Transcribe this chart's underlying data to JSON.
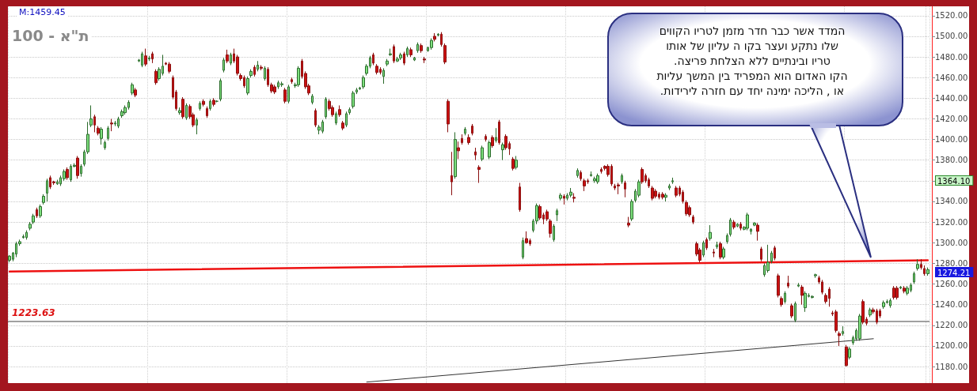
{
  "chart_data": {
    "type": "candlestick",
    "title": "ת\"א - 100",
    "categories": [
      null,
      null,
      null,
      null,
      null,
      null,
      null,
      null,
      null,
      null,
      null,
      null,
      null,
      null,
      null,
      null,
      null,
      null,
      null,
      null,
      null,
      null,
      null,
      null,
      null,
      null,
      null,
      null,
      null,
      null,
      null,
      null,
      null,
      null,
      null,
      null,
      null,
      null,
      null,
      null,
      null,
      null,
      null,
      null,
      null,
      null,
      null,
      null,
      null,
      null,
      null,
      null,
      null,
      null,
      null,
      null,
      null,
      null,
      null,
      null,
      null,
      null,
      null,
      null,
      null,
      null,
      null,
      null,
      null,
      null,
      null,
      null,
      null,
      null,
      null,
      null,
      null,
      null,
      null,
      null,
      null,
      null,
      null,
      null,
      null,
      null,
      null,
      null,
      null,
      null,
      null,
      null,
      null,
      null,
      null,
      null,
      null,
      null,
      null,
      null,
      null,
      null,
      null,
      null,
      null,
      null,
      null,
      null,
      null,
      null,
      null,
      null,
      null,
      null,
      null,
      null,
      null,
      null,
      null,
      null,
      null,
      null,
      null,
      null,
      null,
      null,
      null,
      null,
      null,
      null,
      null,
      null,
      null,
      null,
      null,
      null,
      null,
      null,
      null,
      null,
      null,
      null,
      null,
      null,
      null,
      null,
      null,
      null,
      null,
      null,
      null,
      null,
      null,
      null,
      null,
      null,
      null,
      null,
      null,
      null,
      null,
      null,
      null,
      null,
      null,
      null,
      null,
      null,
      null,
      null,
      null,
      null,
      null,
      null,
      null,
      null,
      null,
      null,
      null,
      null,
      null,
      null,
      null,
      null,
      null,
      null,
      null,
      null,
      null,
      null,
      null,
      null,
      null,
      null,
      null,
      null,
      null,
      null,
      null,
      null,
      null,
      null,
      null,
      null,
      null,
      null,
      null,
      null,
      null,
      null,
      null,
      null,
      null,
      null,
      null,
      null,
      null,
      null,
      null,
      null,
      null,
      null,
      null,
      null,
      null,
      null,
      null,
      null,
      null,
      null,
      null,
      null,
      null,
      null,
      null,
      null,
      null,
      null,
      null,
      null,
      null,
      null,
      null,
      null,
      null,
      null,
      null,
      null,
      null,
      null,
      null,
      null,
      null,
      null,
      null,
      null,
      null,
      null,
      null,
      null,
      null,
      null,
      null,
      null,
      null,
      null,
      null,
      null,
      null,
      null,
      null
    ],
    "ohlc": [
      [
        1283,
        1288,
        1281,
        1287
      ],
      [
        1284,
        1291,
        1282,
        1290
      ],
      [
        1289,
        1301,
        1286,
        1299
      ],
      [
        1299,
        1303,
        1297,
        1301
      ],
      [
        1305,
        1308,
        1304,
        1306
      ],
      [
        1305,
        1312,
        1303,
        1310
      ],
      [
        1314,
        1320,
        1312,
        1318
      ],
      [
        1320,
        1328,
        1318,
        1326
      ],
      [
        1332,
        1334,
        1324,
        1326
      ],
      [
        1326,
        1337,
        1324,
        1335
      ],
      [
        1339,
        1347,
        1337,
        1345
      ],
      [
        1348,
        1362,
        1340,
        1360
      ],
      [
        1363,
        1365,
        1352,
        1354
      ],
      [
        1359,
        1360,
        1356,
        1358
      ],
      [
        1357,
        1361,
        1356,
        1359
      ],
      [
        1357,
        1365,
        1355,
        1363
      ],
      [
        1362,
        1371,
        1360,
        1369
      ],
      [
        1371,
        1373,
        1361,
        1363
      ],
      [
        1361,
        1376,
        1359,
        1374
      ],
      [
        1374,
        1377,
        1373,
        1375
      ],
      [
        1382,
        1384,
        1362,
        1365
      ],
      [
        1367,
        1376,
        1364,
        1374
      ],
      [
        1376,
        1390,
        1374,
        1388
      ],
      [
        1388,
        1417,
        1386,
        1405
      ],
      [
        1414,
        1433,
        1412,
        1420
      ],
      [
        1422,
        1424,
        1407,
        1414
      ],
      [
        1411,
        1413,
        1404,
        1406
      ],
      [
        1401,
        1412,
        1395,
        1410
      ],
      [
        1392,
        1399,
        1390,
        1397
      ],
      [
        1401,
        1413,
        1399,
        1411
      ],
      [
        1416,
        1420,
        1408,
        1415
      ],
      [
        1415,
        1418,
        1413,
        1416
      ],
      [
        1413,
        1422,
        1411,
        1420
      ],
      [
        1423,
        1429,
        1421,
        1427
      ],
      [
        1426,
        1433,
        1424,
        1431
      ],
      [
        1431,
        1438,
        1429,
        1436
      ],
      [
        1445,
        1455,
        1443,
        1453
      ],
      [
        1448,
        1450,
        1441,
        1443
      ],
      [
        1476,
        1478,
        1475,
        1477
      ],
      [
        1472,
        1485,
        1470,
        1483
      ],
      [
        1481,
        1488,
        1471,
        1473
      ],
      [
        1478,
        1481,
        1476,
        1479
      ],
      [
        1483,
        1485,
        1474,
        1478
      ],
      [
        1466,
        1468,
        1453,
        1455
      ],
      [
        1459,
        1470,
        1457,
        1468
      ],
      [
        1464,
        1482,
        1462,
        1471
      ],
      [
        1474,
        1475,
        1472,
        1473
      ],
      [
        1473,
        1475,
        1464,
        1466
      ],
      [
        1460,
        1462,
        1439,
        1441
      ],
      [
        1446,
        1448,
        1428,
        1430
      ],
      [
        1426,
        1431,
        1424,
        1428
      ],
      [
        1439,
        1441,
        1420,
        1422
      ],
      [
        1421,
        1435,
        1419,
        1433
      ],
      [
        1432,
        1434,
        1420,
        1422
      ],
      [
        1424,
        1426,
        1412,
        1414
      ],
      [
        1414,
        1421,
        1405,
        1419
      ],
      [
        1430,
        1437,
        1428,
        1435
      ],
      [
        1437,
        1439,
        1432,
        1434
      ],
      [
        1430,
        1432,
        1421,
        1423
      ],
      [
        1430,
        1439,
        1428,
        1437
      ],
      [
        1438,
        1440,
        1432,
        1434
      ],
      [
        1437,
        1438,
        1436,
        1437
      ],
      [
        1439,
        1459,
        1437,
        1457
      ],
      [
        1467,
        1479,
        1465,
        1477
      ],
      [
        1482,
        1487,
        1474,
        1476
      ],
      [
        1474,
        1484,
        1472,
        1482
      ],
      [
        1483,
        1488,
        1474,
        1476
      ],
      [
        1480,
        1482,
        1462,
        1464
      ],
      [
        1462,
        1464,
        1457,
        1459
      ],
      [
        1460,
        1462,
        1450,
        1452
      ],
      [
        1445,
        1461,
        1443,
        1459
      ],
      [
        1462,
        1468,
        1460,
        1466
      ],
      [
        1470,
        1472,
        1461,
        1463
      ],
      [
        1468,
        1476,
        1466,
        1472
      ],
      [
        1470,
        1472,
        1467,
        1469
      ],
      [
        1459,
        1471,
        1457,
        1469
      ],
      [
        1468,
        1470,
        1451,
        1453
      ],
      [
        1453,
        1455,
        1445,
        1447
      ],
      [
        1451,
        1453,
        1444,
        1446
      ],
      [
        1451,
        1457,
        1449,
        1455
      ],
      [
        1453,
        1456,
        1451,
        1454
      ],
      [
        1448,
        1450,
        1435,
        1437
      ],
      [
        1437,
        1453,
        1435,
        1451
      ],
      [
        1458,
        1460,
        1454,
        1456
      ],
      [
        1452,
        1455,
        1450,
        1453
      ],
      [
        1453,
        1471,
        1451,
        1469
      ],
      [
        1476,
        1478,
        1459,
        1461
      ],
      [
        1464,
        1466,
        1449,
        1451
      ],
      [
        1452,
        1454,
        1443,
        1445
      ],
      [
        1436,
        1444,
        1434,
        1442
      ],
      [
        1428,
        1430,
        1412,
        1414
      ],
      [
        1409,
        1414,
        1405,
        1412
      ],
      [
        1408,
        1419,
        1406,
        1417
      ],
      [
        1422,
        1441,
        1420,
        1439
      ],
      [
        1437,
        1439,
        1428,
        1430
      ],
      [
        1431,
        1433,
        1422,
        1424
      ],
      [
        1416,
        1427,
        1414,
        1425
      ],
      [
        1429,
        1433,
        1422,
        1424
      ],
      [
        1416,
        1418,
        1409,
        1411
      ],
      [
        1414,
        1427,
        1412,
        1425
      ],
      [
        1426,
        1431,
        1424,
        1429
      ],
      [
        1432,
        1447,
        1430,
        1445
      ],
      [
        1446,
        1450,
        1444,
        1448
      ],
      [
        1449,
        1451,
        1448,
        1450
      ],
      [
        1451,
        1462,
        1449,
        1460
      ],
      [
        1464,
        1473,
        1462,
        1471
      ],
      [
        1471,
        1481,
        1469,
        1479
      ],
      [
        1482,
        1484,
        1472,
        1474
      ],
      [
        1471,
        1473,
        1463,
        1465
      ],
      [
        1468,
        1470,
        1463,
        1465
      ],
      [
        1461,
        1469,
        1454,
        1467
      ],
      [
        1473,
        1478,
        1471,
        1476
      ],
      [
        1482,
        1488,
        1481,
        1483
      ],
      [
        1490,
        1492,
        1474,
        1476
      ],
      [
        1476,
        1480,
        1475,
        1478
      ],
      [
        1479,
        1484,
        1477,
        1482
      ],
      [
        1483,
        1485,
        1472,
        1474
      ],
      [
        1482,
        1490,
        1480,
        1488
      ],
      [
        1487,
        1489,
        1480,
        1482
      ],
      [
        1477,
        1480,
        1476,
        1479
      ],
      [
        1486,
        1494,
        1484,
        1492
      ],
      [
        1491,
        1493,
        1484,
        1486
      ],
      [
        1478,
        1480,
        1474,
        1477
      ],
      [
        1486,
        1490,
        1485,
        1489
      ],
      [
        1489,
        1498,
        1487,
        1496
      ],
      [
        1500,
        1503,
        1495,
        1497
      ],
      [
        1501,
        1503,
        1500,
        1502
      ],
      [
        1502,
        1504,
        1490,
        1492
      ],
      [
        1491,
        1493,
        1473,
        1475
      ],
      [
        1437,
        1439,
        1407,
        1415
      ],
      [
        1365,
        1388,
        1346,
        1359
      ],
      [
        1364,
        1407,
        1362,
        1400
      ],
      [
        1392,
        1398,
        1381,
        1389
      ],
      [
        1401,
        1405,
        1395,
        1397
      ],
      [
        1406,
        1412,
        1404,
        1410
      ],
      [
        1402,
        1405,
        1395,
        1397
      ],
      [
        1413,
        1415,
        1404,
        1406
      ],
      [
        1388,
        1392,
        1380,
        1385
      ],
      [
        1373,
        1375,
        1358,
        1371
      ],
      [
        1381,
        1394,
        1379,
        1392
      ],
      [
        1403,
        1405,
        1398,
        1400
      ],
      [
        1383,
        1399,
        1381,
        1397
      ],
      [
        1402,
        1404,
        1392,
        1394
      ],
      [
        1399,
        1411,
        1397,
        1402
      ],
      [
        1417,
        1419,
        1395,
        1397
      ],
      [
        1390,
        1397,
        1380,
        1395
      ],
      [
        1403,
        1405,
        1390,
        1392
      ],
      [
        1396,
        1398,
        1385,
        1391
      ],
      [
        1381,
        1383,
        1370,
        1372
      ],
      [
        1373,
        1384,
        1371,
        1380
      ],
      [
        1354,
        1358,
        1330,
        1332
      ],
      [
        1286,
        1305,
        1284,
        1302
      ],
      [
        1304,
        1311,
        1299,
        1300
      ],
      [
        1302,
        1304,
        1297,
        1299
      ],
      [
        1312,
        1323,
        1310,
        1321
      ],
      [
        1321,
        1338,
        1318,
        1336
      ],
      [
        1335,
        1337,
        1322,
        1324
      ],
      [
        1327,
        1329,
        1318,
        1323
      ],
      [
        1330,
        1332,
        1321,
        1323
      ],
      [
        1321,
        1323,
        1305,
        1309
      ],
      [
        1303,
        1318,
        1301,
        1316
      ],
      [
        1327,
        1333,
        1321,
        1331
      ],
      [
        1343,
        1348,
        1341,
        1346
      ],
      [
        1345,
        1347,
        1337,
        1343
      ],
      [
        1343,
        1348,
        1341,
        1346
      ],
      [
        1346,
        1353,
        1344,
        1349
      ],
      [
        1344,
        1348,
        1339,
        1343
      ],
      [
        1365,
        1372,
        1363,
        1370
      ],
      [
        1368,
        1370,
        1360,
        1362
      ],
      [
        1360,
        1362,
        1350,
        1355
      ],
      [
        1360,
        1362,
        1357,
        1359
      ],
      [
        1365,
        1369,
        1364,
        1366
      ],
      [
        1360,
        1364,
        1358,
        1362
      ],
      [
        1359,
        1367,
        1357,
        1365
      ],
      [
        1371,
        1373,
        1367,
        1369
      ],
      [
        1374,
        1375,
        1370,
        1372
      ],
      [
        1374,
        1376,
        1364,
        1366
      ],
      [
        1374,
        1376,
        1355,
        1357
      ],
      [
        1355,
        1357,
        1351,
        1353
      ],
      [
        1356,
        1358,
        1347,
        1355
      ],
      [
        1359,
        1367,
        1357,
        1365
      ],
      [
        1358,
        1360,
        1344,
        1352
      ],
      [
        1319,
        1325,
        1315,
        1317
      ],
      [
        1323,
        1342,
        1321,
        1340
      ],
      [
        1341,
        1352,
        1339,
        1350
      ],
      [
        1346,
        1361,
        1344,
        1359
      ],
      [
        1371,
        1373,
        1357,
        1359
      ],
      [
        1365,
        1367,
        1358,
        1360
      ],
      [
        1361,
        1363,
        1353,
        1355
      ],
      [
        1353,
        1355,
        1341,
        1343
      ],
      [
        1350,
        1352,
        1343,
        1345
      ],
      [
        1347,
        1349,
        1342,
        1344
      ],
      [
        1347,
        1349,
        1342,
        1344
      ],
      [
        1344,
        1348,
        1340,
        1346
      ],
      [
        1353,
        1357,
        1351,
        1355
      ],
      [
        1359,
        1363,
        1357,
        1360
      ],
      [
        1353,
        1355,
        1344,
        1346
      ],
      [
        1353,
        1355,
        1345,
        1347
      ],
      [
        1349,
        1351,
        1338,
        1340
      ],
      [
        1339,
        1341,
        1326,
        1328
      ],
      [
        1334,
        1336,
        1325,
        1327
      ],
      [
        1325,
        1327,
        1318,
        1320
      ],
      [
        1299,
        1301,
        1287,
        1289
      ],
      [
        1293,
        1295,
        1281,
        1283
      ],
      [
        1288,
        1302,
        1286,
        1300
      ],
      [
        1303,
        1305,
        1293,
        1295
      ],
      [
        1304,
        1317,
        1302,
        1310
      ],
      [
        1291,
        1294,
        1286,
        1290
      ],
      [
        1296,
        1301,
        1294,
        1298
      ],
      [
        1299,
        1301,
        1284,
        1286
      ],
      [
        1286,
        1296,
        1284,
        1294
      ],
      [
        1301,
        1309,
        1299,
        1307
      ],
      [
        1308,
        1324,
        1306,
        1322
      ],
      [
        1320,
        1322,
        1313,
        1315
      ],
      [
        1316,
        1319,
        1315,
        1318
      ],
      [
        1318,
        1320,
        1312,
        1314
      ],
      [
        1313,
        1316,
        1312,
        1315
      ],
      [
        1314,
        1329,
        1312,
        1327
      ],
      [
        1311,
        1314,
        1308,
        1313
      ],
      [
        1317,
        1320,
        1316,
        1319
      ],
      [
        1317,
        1319,
        1302,
        1311
      ],
      [
        1294,
        1296,
        1282,
        1284
      ],
      [
        1269,
        1280,
        1267,
        1278
      ],
      [
        1273,
        1298,
        1271,
        1281
      ],
      [
        1282,
        1292,
        1280,
        1290
      ],
      [
        1295,
        1297,
        1283,
        1285
      ],
      [
        1268,
        1270,
        1247,
        1249
      ],
      [
        1246,
        1248,
        1238,
        1240
      ],
      [
        1243,
        1253,
        1241,
        1251
      ],
      [
        1261,
        1268,
        1256,
        1258
      ],
      [
        1239,
        1241,
        1227,
        1229
      ],
      [
        1225,
        1243,
        1223,
        1241
      ],
      [
        1258,
        1261,
        1257,
        1259
      ],
      [
        1257,
        1259,
        1240,
        1249
      ],
      [
        1237,
        1253,
        1233,
        1251
      ],
      [
        1248,
        1251,
        1247,
        1249
      ],
      [
        1247,
        1249,
        1246,
        1248
      ],
      [
        1268,
        1270,
        1266,
        1269
      ],
      [
        1266,
        1268,
        1260,
        1262
      ],
      [
        1262,
        1264,
        1250,
        1252
      ],
      [
        1249,
        1251,
        1241,
        1243
      ],
      [
        1255,
        1257,
        1238,
        1246
      ],
      [
        1232,
        1234,
        1229,
        1231
      ],
      [
        1233,
        1235,
        1213,
        1215
      ],
      [
        1212,
        1214,
        1200,
        1210
      ],
      [
        1212,
        1219,
        1210,
        1214
      ],
      [
        1199,
        1201,
        1180,
        1181
      ],
      [
        1189,
        1199,
        1187,
        1197
      ],
      [
        1203,
        1210,
        1201,
        1208
      ],
      [
        1207,
        1217,
        1205,
        1215
      ],
      [
        1207,
        1231,
        1205,
        1229
      ],
      [
        1243,
        1245,
        1221,
        1223
      ],
      [
        1226,
        1228,
        1220,
        1222
      ],
      [
        1230,
        1237,
        1228,
        1235
      ],
      [
        1235,
        1237,
        1231,
        1233
      ],
      [
        1234,
        1236,
        1221,
        1223
      ],
      [
        1234,
        1236,
        1227,
        1229
      ],
      [
        1238,
        1244,
        1236,
        1242
      ],
      [
        1242,
        1245,
        1241,
        1243
      ],
      [
        1239,
        1246,
        1237,
        1244
      ],
      [
        1256,
        1258,
        1245,
        1247
      ],
      [
        1256,
        1258,
        1245,
        1247
      ],
      [
        1256,
        1258,
        1255,
        1257
      ],
      [
        1256,
        1258,
        1251,
        1253
      ],
      [
        1251,
        1258,
        1249,
        1256
      ],
      [
        1254,
        1261,
        1252,
        1259
      ],
      [
        1262,
        1272,
        1260,
        1270
      ],
      [
        1275,
        1284,
        1273,
        1279
      ],
      [
        1279,
        1284,
        1274,
        1276
      ],
      [
        1275,
        1278,
        1268,
        1270
      ],
      [
        1270,
        1276,
        1268,
        1274
      ]
    ],
    "series": [
      {
        "type": "line",
        "color": "#ee1111",
        "values": [
          1272,
          null,
          null,
          null,
          null,
          null,
          null,
          null,
          null,
          null,
          null,
          null,
          null,
          null,
          null,
          null,
          null,
          null,
          null,
          null,
          null,
          null,
          null,
          null,
          null,
          null,
          null,
          null,
          null,
          null,
          null,
          null,
          null,
          null,
          null,
          null,
          null,
          null,
          null,
          null,
          null,
          null,
          null,
          null,
          null,
          null,
          null,
          null,
          null,
          null,
          null,
          null,
          null,
          null,
          null,
          null,
          null,
          null,
          null,
          null,
          null,
          null,
          null,
          null,
          null,
          null,
          null,
          null,
          null,
          null,
          null,
          null,
          null,
          null,
          null,
          null,
          null,
          null,
          null,
          null,
          null,
          null,
          null,
          null,
          null,
          null,
          null,
          null,
          null,
          null,
          null,
          null,
          null,
          null,
          null,
          null,
          null,
          null,
          null,
          null,
          null,
          null,
          null,
          null,
          null,
          null,
          null,
          null,
          null,
          null,
          null,
          null,
          null,
          null,
          null,
          null,
          null,
          null,
          null,
          null,
          null,
          null,
          null,
          null,
          null,
          null,
          null,
          null,
          null,
          null,
          null,
          null,
          null,
          null,
          null,
          null,
          null,
          null,
          null,
          null,
          null,
          null,
          null,
          null,
          null,
          null,
          null,
          null,
          null,
          null,
          null,
          null,
          null,
          null,
          null,
          null,
          null,
          null,
          null,
          null,
          null,
          null,
          null,
          null,
          null,
          null,
          null,
          null,
          null,
          null,
          null,
          null,
          null,
          null,
          null,
          null,
          null,
          null,
          null,
          null,
          null,
          null,
          null,
          null,
          null,
          null,
          null,
          null,
          null,
          null,
          null,
          null,
          null,
          null,
          null,
          null,
          null,
          null,
          null,
          null,
          null,
          null,
          null,
          null,
          null,
          null,
          null,
          null,
          null,
          null,
          null,
          null,
          null,
          null,
          null,
          null,
          null,
          null,
          null,
          null,
          null,
          null,
          null,
          null,
          null,
          null,
          null,
          null,
          null,
          null,
          null,
          null,
          null,
          null,
          null,
          null,
          null,
          null,
          null,
          null,
          null,
          null,
          null,
          null,
          null,
          null,
          null,
          null,
          null,
          null,
          null,
          null,
          null,
          null,
          null,
          null,
          null,
          null,
          null,
          null,
          null,
          null,
          null,
          null,
          null,
          null,
          null,
          null,
          null,
          null,
          1283
        ]
      },
      {
        "type": "line",
        "color": "#333333",
        "values": [
          null,
          null,
          null,
          null,
          null,
          null,
          null,
          null,
          null,
          null,
          null,
          null,
          null,
          null,
          null,
          null,
          null,
          null,
          null,
          null,
          null,
          null,
          null,
          null,
          null,
          null,
          null,
          null,
          null,
          null,
          null,
          null,
          null,
          null,
          null,
          null,
          null,
          null,
          null,
          null,
          null,
          null,
          null,
          null,
          null,
          null,
          null,
          null,
          null,
          null,
          null,
          null,
          null,
          null,
          null,
          null,
          null,
          null,
          null,
          null,
          null,
          null,
          null,
          null,
          null,
          null,
          null,
          null,
          null,
          null,
          null,
          null,
          null,
          null,
          null,
          null,
          null,
          null,
          null,
          null,
          null,
          null,
          null,
          null,
          null,
          null,
          null,
          null,
          null,
          null,
          null,
          null,
          null,
          null,
          null,
          null,
          null,
          null,
          null,
          null,
          null,
          null,
          null,
          null,
          null,
          1165,
          null,
          null,
          null,
          null,
          null,
          null,
          null,
          null,
          null,
          null,
          null,
          null,
          null,
          null,
          null,
          null,
          null,
          null,
          null,
          null,
          null,
          null,
          null,
          null,
          null,
          null,
          null,
          null,
          null,
          null,
          null,
          null,
          null,
          null,
          null,
          null,
          null,
          null,
          null,
          null,
          null,
          null,
          null,
          null,
          null,
          null,
          null,
          null,
          null,
          null,
          null,
          null,
          null,
          null,
          null,
          null,
          null,
          null,
          null,
          null,
          null,
          null,
          null,
          null,
          null,
          null,
          null,
          null,
          null,
          null,
          null,
          null,
          null,
          null,
          null,
          null,
          null,
          null,
          null,
          null,
          null,
          null,
          null,
          null,
          null,
          null,
          null,
          null,
          null,
          null,
          null,
          null,
          null,
          null,
          null,
          null,
          null,
          null,
          null,
          null,
          null,
          null,
          null,
          null,
          null,
          null,
          null,
          null,
          null,
          null,
          null,
          null,
          null,
          null,
          null,
          null,
          null,
          null,
          null,
          null,
          null,
          null,
          null,
          null,
          null,
          null,
          null,
          null,
          null,
          null,
          null,
          null,
          null,
          null,
          null,
          null,
          null,
          null,
          null,
          null,
          null,
          null,
          null,
          null,
          null,
          null,
          null,
          null,
          1207,
          null,
          null,
          null,
          null,
          null,
          null,
          null,
          null,
          null,
          null,
          null,
          null,
          null,
          null,
          null,
          null
        ]
      }
    ],
    "ref_lines": [
      {
        "axis": "y",
        "value": 1223.63,
        "label": "1223.63",
        "color": "#808080"
      }
    ],
    "ylim": [
      1164,
      1529
    ],
    "yticks": [
      {
        "value": 1180,
        "label": "1180.00"
      },
      {
        "value": 1200,
        "label": "1200.00"
      },
      {
        "value": 1220,
        "label": "1220.00"
      },
      {
        "value": 1240,
        "label": "1240.00"
      },
      {
        "value": 1260,
        "label": "1260.00"
      },
      {
        "value": 1280,
        "label": "1280.00"
      },
      {
        "value": 1300,
        "label": "1300.00"
      },
      {
        "value": 1320,
        "label": "1320.00"
      },
      {
        "value": 1340,
        "label": "1340.00"
      },
      {
        "value": 1360,
        "label": null
      },
      {
        "value": 1380,
        "label": "1380.00"
      },
      {
        "value": 1400,
        "label": "1400.00"
      },
      {
        "value": 1420,
        "label": "1420.00"
      },
      {
        "value": 1440,
        "label": "1440.00"
      },
      {
        "value": 1460,
        "label": "1460.00"
      },
      {
        "value": 1480,
        "label": "1480.00"
      },
      {
        "value": 1500,
        "label": "1500.00"
      },
      {
        "value": 1520,
        "label": "1520.00"
      }
    ],
    "annotations": [
      "M:1459.45",
      "המדד אשר כבר חדר מזמן לטריו הקווים\nשלו נתקע ועצר בקו ה עליון של אותו\nטריו ובינתיים ללא הצלחת פריצה.\nהקו האדום הוא המפריד בין המשך עליות\nאו , הליכה ימינה יחד עם חזרה לירידות.",
      "1364.10",
      "1274.21"
    ],
    "grid": true,
    "tick_labels": "y"
  }
}
